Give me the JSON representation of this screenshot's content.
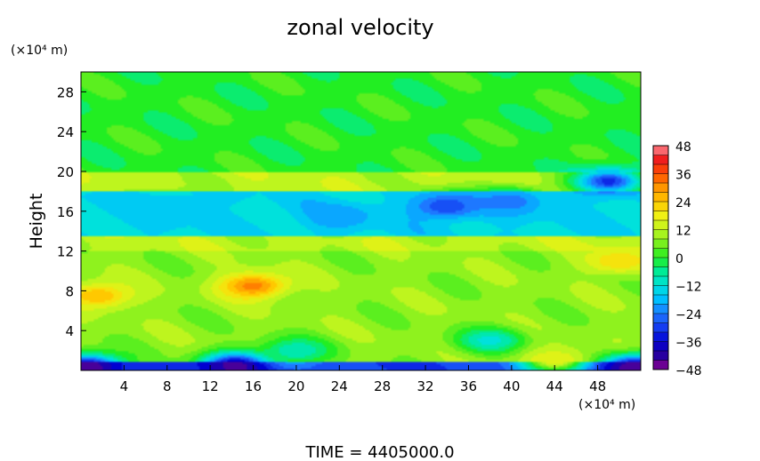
{
  "chart_data": {
    "type": "heatmap",
    "title": "zonal velocity",
    "ylabel": "Height",
    "xlabel": "",
    "x_scale_note": "(×10⁴ m)",
    "y_scale_note": "(×10⁴ m)",
    "xlim": [
      0,
      52
    ],
    "ylim": [
      0,
      30
    ],
    "x_ticks": [
      4,
      8,
      12,
      16,
      20,
      24,
      28,
      32,
      36,
      40,
      44,
      48
    ],
    "y_ticks": [
      4,
      8,
      12,
      16,
      20,
      24,
      28
    ],
    "colorbar": {
      "min": -48,
      "max": 48,
      "step": 4,
      "tick_labels": [
        48,
        36,
        24,
        12,
        0,
        -12,
        -24,
        -36,
        -48
      ]
    },
    "footer": "TIME = 4405000.0",
    "field_description_layers": [
      {
        "y_from": 0,
        "y_to": 0.8,
        "value": -30
      },
      {
        "y_from": 0.8,
        "y_to": 12,
        "value": 8
      },
      {
        "y_from": 12,
        "y_to": 13.5,
        "value": 12
      },
      {
        "y_from": 13.5,
        "y_to": 18,
        "value": -14
      },
      {
        "y_from": 18,
        "y_to": 20,
        "value": 12
      },
      {
        "y_from": 20,
        "y_to": 30,
        "value": 0
      }
    ],
    "features": [
      {
        "x": 16,
        "y": 8.5,
        "value": 32
      },
      {
        "x": 1.5,
        "y": 7.5,
        "value": 26
      },
      {
        "x": 34,
        "y": 16.5,
        "value": -30
      },
      {
        "x": 49,
        "y": 19,
        "value": -32
      },
      {
        "x": 14.5,
        "y": 0.5,
        "value": -44
      },
      {
        "x": 0.5,
        "y": 0.3,
        "value": -46
      },
      {
        "x": 51.5,
        "y": 0.3,
        "value": -46
      },
      {
        "x": 8,
        "y": 16.5,
        "value": -18
      },
      {
        "x": 24,
        "y": 15.5,
        "value": -22
      },
      {
        "x": 40,
        "y": 17,
        "value": -24
      },
      {
        "x": 20,
        "y": 2,
        "value": -10
      },
      {
        "x": 38,
        "y": 3,
        "value": -12
      },
      {
        "x": 44,
        "y": 1,
        "value": 18
      },
      {
        "x": 50,
        "y": 11,
        "value": 22
      }
    ]
  }
}
